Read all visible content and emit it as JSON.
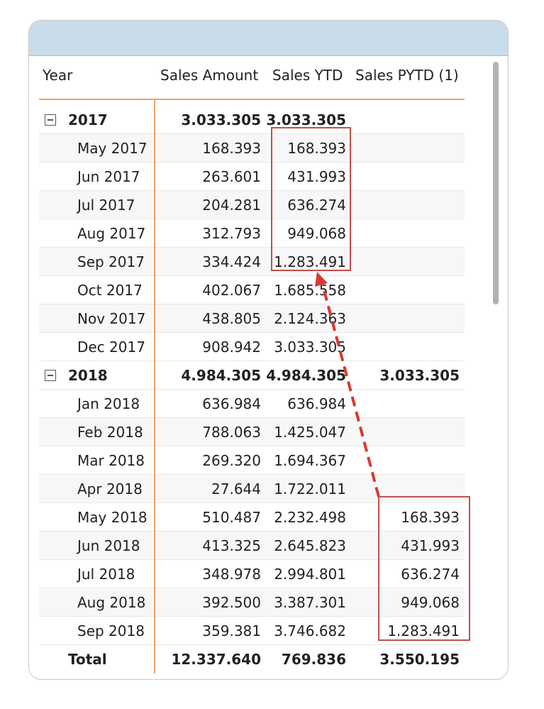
{
  "columns": {
    "year": "Year",
    "sales_amount": "Sales Amount",
    "sales_ytd": "Sales YTD",
    "sales_pytd": "Sales PYTD (1)"
  },
  "rows": [
    {
      "type": "year",
      "label": "2017",
      "sales_amount": "3.033.305",
      "sales_ytd": "3.033.305",
      "sales_pytd": ""
    },
    {
      "type": "month",
      "label": "May 2017",
      "sales_amount": "168.393",
      "sales_ytd": "168.393",
      "sales_pytd": ""
    },
    {
      "type": "month",
      "label": "Jun 2017",
      "sales_amount": "263.601",
      "sales_ytd": "431.993",
      "sales_pytd": ""
    },
    {
      "type": "month",
      "label": "Jul 2017",
      "sales_amount": "204.281",
      "sales_ytd": "636.274",
      "sales_pytd": ""
    },
    {
      "type": "month",
      "label": "Aug 2017",
      "sales_amount": "312.793",
      "sales_ytd": "949.068",
      "sales_pytd": ""
    },
    {
      "type": "month",
      "label": "Sep 2017",
      "sales_amount": "334.424",
      "sales_ytd": "1.283.491",
      "sales_pytd": ""
    },
    {
      "type": "month",
      "label": "Oct 2017",
      "sales_amount": "402.067",
      "sales_ytd": "1.685.558",
      "sales_pytd": ""
    },
    {
      "type": "month",
      "label": "Nov 2017",
      "sales_amount": "438.805",
      "sales_ytd": "2.124.363",
      "sales_pytd": ""
    },
    {
      "type": "month",
      "label": "Dec 2017",
      "sales_amount": "908.942",
      "sales_ytd": "3.033.305",
      "sales_pytd": ""
    },
    {
      "type": "year",
      "label": "2018",
      "sales_amount": "4.984.305",
      "sales_ytd": "4.984.305",
      "sales_pytd": "3.033.305"
    },
    {
      "type": "month",
      "label": "Jan 2018",
      "sales_amount": "636.984",
      "sales_ytd": "636.984",
      "sales_pytd": ""
    },
    {
      "type": "month",
      "label": "Feb 2018",
      "sales_amount": "788.063",
      "sales_ytd": "1.425.047",
      "sales_pytd": ""
    },
    {
      "type": "month",
      "label": "Mar 2018",
      "sales_amount": "269.320",
      "sales_ytd": "1.694.367",
      "sales_pytd": ""
    },
    {
      "type": "month",
      "label": "Apr 2018",
      "sales_amount": "27.644",
      "sales_ytd": "1.722.011",
      "sales_pytd": ""
    },
    {
      "type": "month",
      "label": "May 2018",
      "sales_amount": "510.487",
      "sales_ytd": "2.232.498",
      "sales_pytd": "168.393"
    },
    {
      "type": "month",
      "label": "Jun 2018",
      "sales_amount": "413.325",
      "sales_ytd": "2.645.823",
      "sales_pytd": "431.993"
    },
    {
      "type": "month",
      "label": "Jul 2018",
      "sales_amount": "348.978",
      "sales_ytd": "2.994.801",
      "sales_pytd": "636.274"
    },
    {
      "type": "month",
      "label": "Aug 2018",
      "sales_amount": "392.500",
      "sales_ytd": "3.387.301",
      "sales_pytd": "949.068"
    },
    {
      "type": "month",
      "label": "Sep 2018",
      "sales_amount": "359.381",
      "sales_ytd": "3.746.682",
      "sales_pytd": "1.283.491"
    }
  ],
  "total": {
    "label": "Total",
    "sales_amount": "12.337.640",
    "sales_ytd": "769.836",
    "sales_pytd": "3.550.195"
  },
  "annotation_color": "#c0504d",
  "accent_color": "#f0a364",
  "header_color": "#c9dce9"
}
